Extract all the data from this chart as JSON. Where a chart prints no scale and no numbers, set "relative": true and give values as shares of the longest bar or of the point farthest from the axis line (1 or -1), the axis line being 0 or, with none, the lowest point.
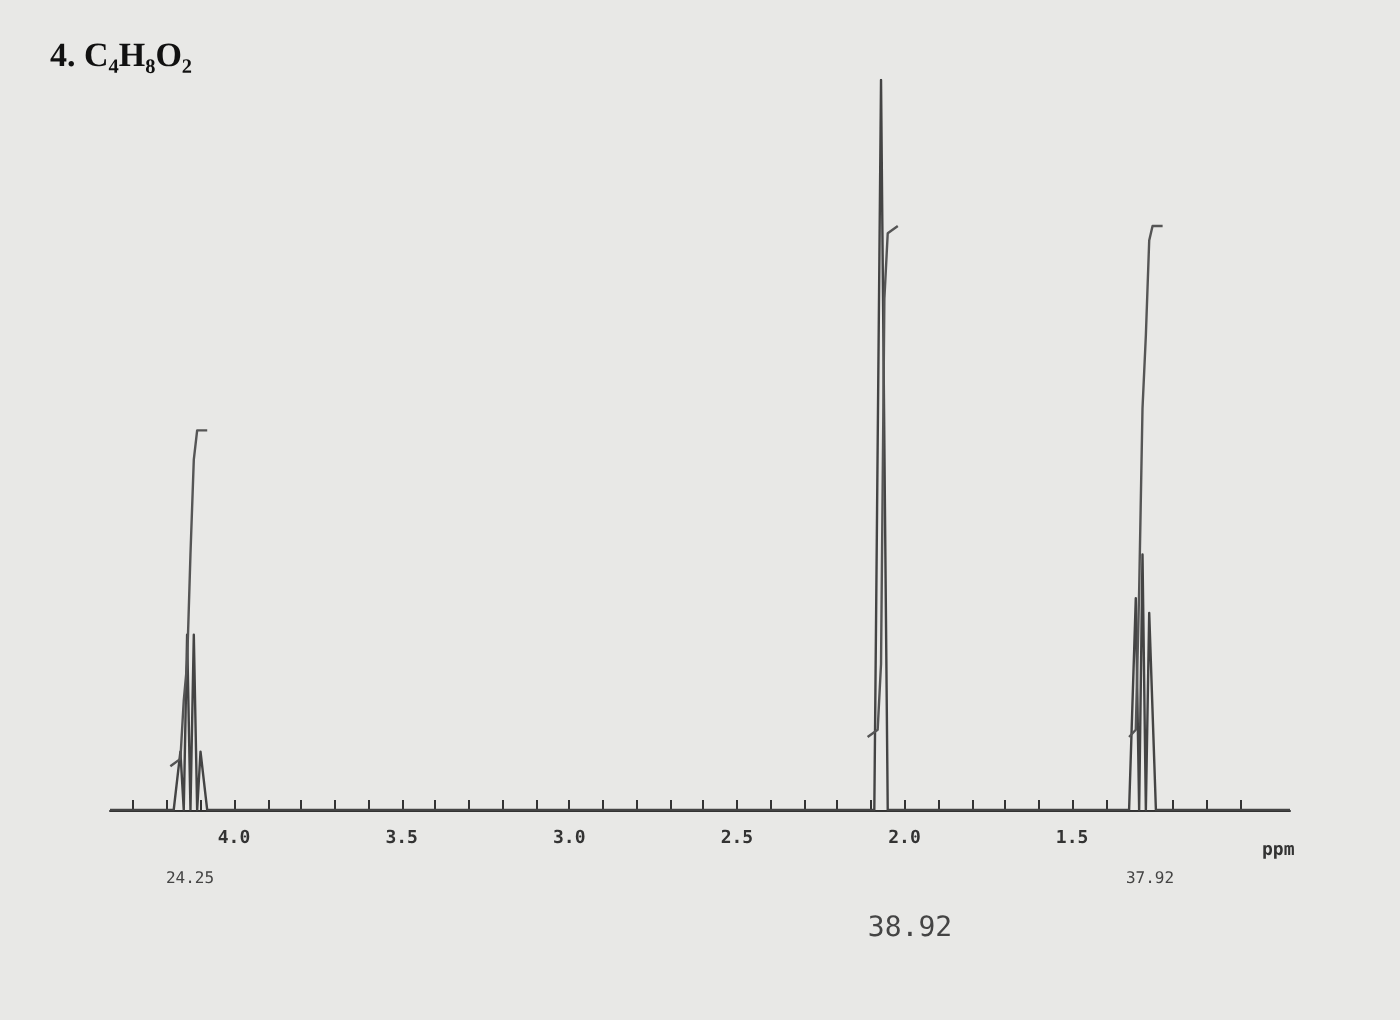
{
  "chart_data": {
    "type": "line",
    "title": "4. C₄H₈O₂",
    "xlabel": "ppm",
    "relative": true,
    "grid": false,
    "marker": "none",
    "line_style": "solid",
    "xlim": [
      4.37,
      0.85
    ],
    "xticks": [
      {
        "value": 4.3,
        "label": null
      },
      {
        "value": 4.2,
        "label": null
      },
      {
        "value": 4.1,
        "label": null
      },
      {
        "value": 4.0,
        "label": "4.0"
      },
      {
        "value": 3.9,
        "label": null
      },
      {
        "value": 3.8,
        "label": null
      },
      {
        "value": 3.7,
        "label": null
      },
      {
        "value": 3.6,
        "label": null
      },
      {
        "value": 3.5,
        "label": "3.5"
      },
      {
        "value": 3.4,
        "label": null
      },
      {
        "value": 3.3,
        "label": null
      },
      {
        "value": 3.2,
        "label": null
      },
      {
        "value": 3.1,
        "label": null
      },
      {
        "value": 3.0,
        "label": "3.0"
      },
      {
        "value": 2.9,
        "label": null
      },
      {
        "value": 2.8,
        "label": null
      },
      {
        "value": 2.7,
        "label": null
      },
      {
        "value": 2.6,
        "label": null
      },
      {
        "value": 2.5,
        "label": "2.5"
      },
      {
        "value": 2.4,
        "label": null
      },
      {
        "value": 2.3,
        "label": null
      },
      {
        "value": 2.2,
        "label": null
      },
      {
        "value": 2.1,
        "label": null
      },
      {
        "value": 2.0,
        "label": "2.0"
      },
      {
        "value": 1.9,
        "label": null
      },
      {
        "value": 1.8,
        "label": null
      },
      {
        "value": 1.7,
        "label": null
      },
      {
        "value": 1.6,
        "label": null
      },
      {
        "value": 1.5,
        "label": "1.5"
      },
      {
        "value": 1.4,
        "label": null
      },
      {
        "value": 1.3,
        "label": null
      },
      {
        "value": 1.2,
        "label": null
      },
      {
        "value": 1.1,
        "label": null
      },
      {
        "value": 1.0,
        "label": null
      }
    ],
    "series": [
      {
        "color": "#444444",
        "x": [
          4.37,
          4.18,
          4.16,
          4.15,
          4.14,
          4.13,
          4.12,
          4.11,
          4.1,
          4.08,
          2.09,
          2.07,
          2.05,
          1.33,
          1.31,
          1.3,
          1.29,
          1.28,
          1.27,
          1.25,
          0.85
        ],
        "values": [
          0,
          0,
          0.08,
          0,
          0.24,
          0,
          0.24,
          0,
          0.08,
          0,
          0,
          1,
          0,
          0,
          0.29,
          0,
          0.35,
          0,
          0.27,
          0,
          0
        ]
      },
      {
        "color": "#555555",
        "x": [
          4.19,
          4.16,
          4.15,
          4.14,
          4.13,
          4.12,
          4.11,
          4.1,
          4.08
        ],
        "values": [
          0.06,
          0.07,
          0.15,
          0.2,
          0.35,
          0.48,
          0.52,
          0.52,
          0.52
        ]
      },
      {
        "color": "#555555",
        "x": [
          2.11,
          2.08,
          2.07,
          2.06,
          2.05,
          2.02
        ],
        "values": [
          0.1,
          0.11,
          0.2,
          0.7,
          0.79,
          0.8
        ]
      },
      {
        "color": "#555555",
        "x": [
          1.33,
          1.31,
          1.3,
          1.29,
          1.28,
          1.27,
          1.26,
          1.23
        ],
        "values": [
          0.1,
          0.11,
          0.3,
          0.55,
          0.65,
          0.78,
          0.8,
          0.8
        ]
      }
    ],
    "annotations": [
      "24.25",
      "38.92",
      "37.92"
    ]
  }
}
